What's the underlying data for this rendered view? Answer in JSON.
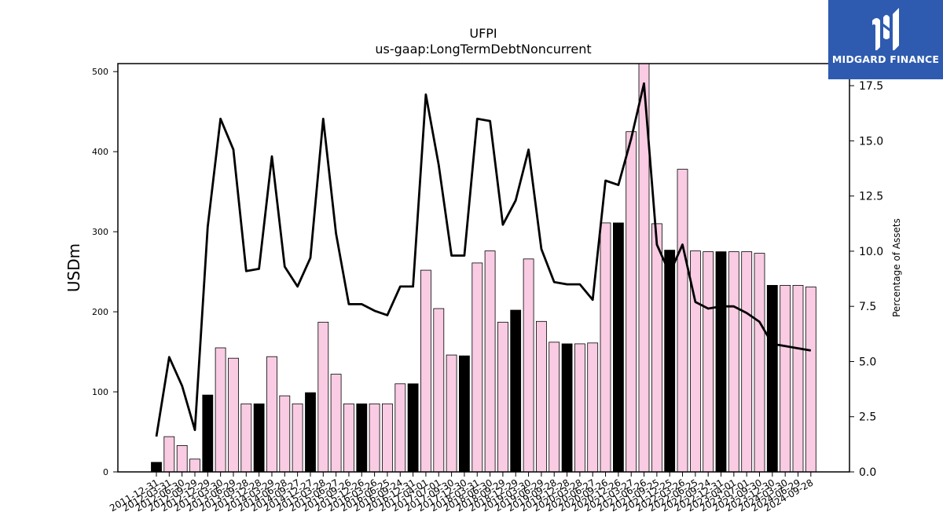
{
  "chart_data": {
    "type": "bar+line",
    "title": "UFPI",
    "subtitle": "us-gaap:LongTermDebtNoncurrent",
    "ylabel": "USDm",
    "y2label": "Percentage of Assets",
    "ylim": [
      0,
      510
    ],
    "y2lim": [
      0,
      18.5
    ],
    "yticks": [
      0,
      100,
      200,
      300,
      400,
      500
    ],
    "y2ticks": [
      "0.0",
      "2.5",
      "5.0",
      "7.5",
      "10.0",
      "12.5",
      "15.0",
      "17.5"
    ],
    "grid": false,
    "colors": {
      "bar_default": "#f9cce3",
      "bar_highlight": "#000000",
      "line": "#000000"
    },
    "categories": [
      "2011-12-31",
      "2012-03-31",
      "2012-06-30",
      "2012-09-29",
      "2012-12-29",
      "2013-03-30",
      "2013-06-29",
      "2013-09-28",
      "2013-12-28",
      "2014-03-29",
      "2014-06-28",
      "2014-09-27",
      "2014-12-27",
      "2015-03-28",
      "2015-06-27",
      "2015-09-26",
      "2015-12-26",
      "2016-03-26",
      "2016-06-25",
      "2016-09-24",
      "2016-12-31",
      "2017-04-01",
      "2017-07-01",
      "2017-09-30",
      "2017-12-30",
      "2018-03-31",
      "2018-06-30",
      "2018-09-29",
      "2018-12-29",
      "2019-03-30",
      "2019-06-29",
      "2019-09-28",
      "2019-12-28",
      "2020-03-28",
      "2020-06-27",
      "2020-09-26",
      "2020-12-26",
      "2021-03-27",
      "2021-06-26",
      "2021-09-25",
      "2021-12-25",
      "2022-03-26",
      "2022-06-25",
      "2022-09-24",
      "2022-12-31",
      "2023-04-01",
      "2023-07-01",
      "2023-09-30",
      "2023-12-30",
      "2024-03-30",
      "2024-06-29",
      "2024-09-28"
    ],
    "bar_values": [
      12,
      44,
      33,
      16,
      96,
      155,
      142,
      85,
      85,
      144,
      95,
      85,
      99,
      187,
      122,
      85,
      85,
      85,
      85,
      110,
      110,
      252,
      204,
      146,
      145,
      261,
      276,
      187,
      202,
      266,
      188,
      162,
      160,
      160,
      161,
      311,
      311,
      425,
      510,
      310,
      277,
      378,
      276,
      275,
      275,
      275,
      275,
      273,
      233,
      233,
      233,
      231
    ],
    "highlight": [
      true,
      false,
      false,
      false,
      true,
      false,
      false,
      false,
      true,
      false,
      false,
      false,
      true,
      false,
      false,
      false,
      true,
      false,
      false,
      false,
      true,
      false,
      false,
      false,
      true,
      false,
      false,
      false,
      true,
      false,
      false,
      false,
      true,
      false,
      false,
      false,
      true,
      false,
      false,
      false,
      true,
      false,
      false,
      false,
      true,
      false,
      false,
      false,
      true,
      false,
      false,
      false
    ],
    "line_values": [
      1.6,
      5.2,
      3.9,
      1.9,
      11.1,
      16.0,
      14.6,
      9.1,
      9.2,
      14.3,
      9.3,
      8.4,
      9.7,
      16.0,
      10.8,
      7.6,
      7.6,
      7.3,
      7.1,
      8.4,
      8.4,
      17.1,
      13.9,
      9.8,
      9.8,
      16.0,
      15.9,
      11.2,
      12.3,
      14.6,
      10.1,
      8.6,
      8.5,
      8.5,
      7.8,
      13.2,
      13.0,
      15.1,
      17.6,
      10.3,
      9.0,
      10.3,
      7.7,
      7.4,
      7.5,
      7.5,
      7.2,
      6.8,
      5.8,
      5.7,
      5.6,
      5.5
    ]
  },
  "branding": {
    "logo_text": "MIDGARD FINANCE",
    "logo_icon": "midgard-logo-icon"
  }
}
